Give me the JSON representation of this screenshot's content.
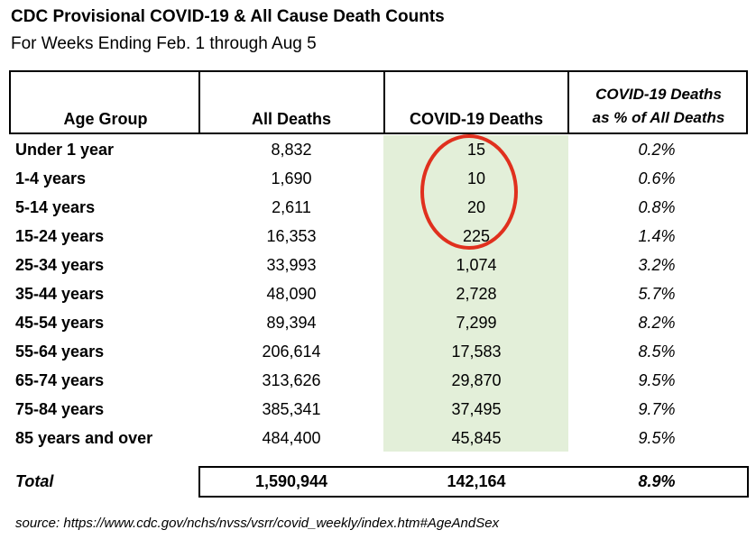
{
  "title": "CDC Provisional COVID-19 & All Cause Death Counts",
  "subtitle": "For Weeks Ending Feb. 1 through Aug 5",
  "headers": {
    "age_group": "Age Group",
    "all_deaths": "All Deaths",
    "covid_deaths": "COVID-19 Deaths",
    "pct_line1": "COVID-19 Deaths",
    "pct_line2": "as % of All Deaths"
  },
  "rows": [
    {
      "age": "Under 1 year",
      "all": "8,832",
      "covid": "15",
      "pct": "0.2%"
    },
    {
      "age": "1-4 years",
      "all": "1,690",
      "covid": "10",
      "pct": "0.6%"
    },
    {
      "age": "5-14 years",
      "all": "2,611",
      "covid": "20",
      "pct": "0.8%"
    },
    {
      "age": "15-24 years",
      "all": "16,353",
      "covid": "225",
      "pct": "1.4%"
    },
    {
      "age": "25-34 years",
      "all": "33,993",
      "covid": "1,074",
      "pct": "3.2%"
    },
    {
      "age": "35-44 years",
      "all": "48,090",
      "covid": "2,728",
      "pct": "5.7%"
    },
    {
      "age": "45-54 years",
      "all": "89,394",
      "covid": "7,299",
      "pct": "8.2%"
    },
    {
      "age": "55-64 years",
      "all": "206,614",
      "covid": "17,583",
      "pct": "8.5%"
    },
    {
      "age": "65-74 years",
      "all": "313,626",
      "covid": "29,870",
      "pct": "9.5%"
    },
    {
      "age": "75-84 years",
      "all": "385,341",
      "covid": "37,495",
      "pct": "9.7%"
    },
    {
      "age": "85 years and over",
      "all": "484,400",
      "covid": "45,845",
      "pct": "9.5%"
    }
  ],
  "total": {
    "label": "Total",
    "all": "1,590,944",
    "covid": "142,164",
    "pct": "8.9%"
  },
  "source": "source: https://www.cdc.gov/nchs/nvss/vsrr/covid_weekly/index.htm#AgeAndSex",
  "colors": {
    "covid_column_bg": "#e3efd9",
    "annotation_circle": "#e0301e"
  }
}
